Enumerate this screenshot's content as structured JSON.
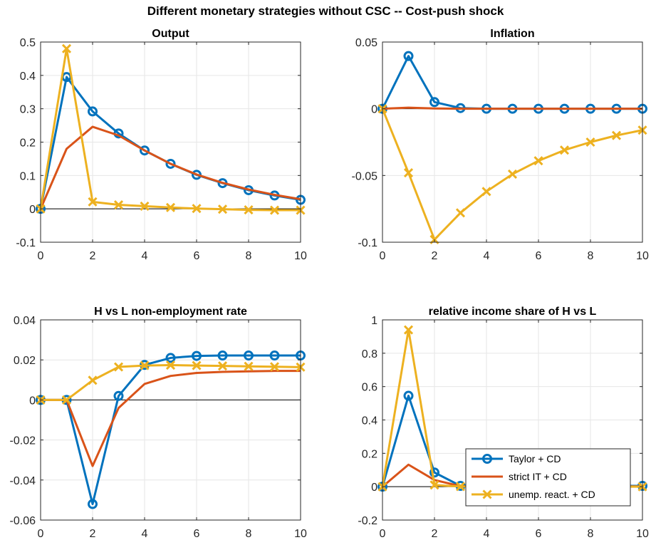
{
  "figure_title": "Different monetary strategies without CSC -- Cost-push shock",
  "colors": {
    "taylor": "#0072BD",
    "strict_it": "#D95319",
    "unemp": "#EDB120",
    "grid": "#e6e6e6",
    "axis": "#262626"
  },
  "legend": {
    "entries": [
      "Taylor + CD",
      "strict IT + CD",
      "unemp. react. + CD"
    ],
    "placement": "lower-right of relative income share panel"
  },
  "chart_data": [
    {
      "type": "line",
      "title": "Output",
      "x": [
        0,
        1,
        2,
        3,
        4,
        5,
        6,
        7,
        8,
        9,
        10
      ],
      "xlim": [
        0,
        10
      ],
      "ylim": [
        -0.1,
        0.5
      ],
      "xticks": [
        "0",
        "2",
        "4",
        "6",
        "8",
        "10"
      ],
      "yticks": [
        "-0.1",
        "0",
        "0.1",
        "0.2",
        "0.3",
        "0.4",
        "0.5"
      ],
      "grid": true,
      "zero_line": true,
      "series": [
        {
          "name": "Taylor + CD",
          "values": [
            0,
            0.395,
            0.292,
            0.226,
            0.175,
            0.135,
            0.102,
            0.077,
            0.056,
            0.04,
            0.027
          ]
        },
        {
          "name": "strict IT + CD",
          "values": [
            0,
            0.18,
            0.246,
            0.22,
            0.175,
            0.135,
            0.103,
            0.078,
            0.058,
            0.042,
            0.029
          ]
        },
        {
          "name": "unemp. react. + CD",
          "values": [
            0,
            0.48,
            0.021,
            0.012,
            0.008,
            0.004,
            0.001,
            -0.001,
            -0.003,
            -0.004,
            -0.004
          ]
        }
      ]
    },
    {
      "type": "line",
      "title": "Inflation",
      "x": [
        0,
        1,
        2,
        3,
        4,
        5,
        6,
        7,
        8,
        9,
        10
      ],
      "xlim": [
        0,
        10
      ],
      "ylim": [
        -0.1,
        0.05
      ],
      "xticks": [
        "0",
        "2",
        "4",
        "6",
        "8",
        "10"
      ],
      "yticks": [
        "-0.1",
        "-0.05",
        "0",
        "0.05"
      ],
      "grid": true,
      "zero_line": true,
      "series": [
        {
          "name": "Taylor + CD",
          "values": [
            0,
            0.0395,
            0.005,
            0.0005,
            0,
            0,
            0,
            0,
            0,
            0,
            0
          ]
        },
        {
          "name": "strict IT + CD",
          "values": [
            0,
            0.0008,
            0.0002,
            0,
            0,
            0,
            0,
            0,
            0,
            0,
            0
          ]
        },
        {
          "name": "unemp. react. + CD",
          "values": [
            0,
            -0.048,
            -0.098,
            -0.078,
            -0.062,
            -0.049,
            -0.039,
            -0.031,
            -0.025,
            -0.02,
            -0.016
          ]
        }
      ]
    },
    {
      "type": "line",
      "title": "H vs L non-employment rate",
      "x": [
        0,
        1,
        2,
        3,
        4,
        5,
        6,
        7,
        8,
        9,
        10
      ],
      "xlim": [
        0,
        10
      ],
      "ylim": [
        -0.06,
        0.04
      ],
      "xticks": [
        "0",
        "2",
        "4",
        "6",
        "8",
        "10"
      ],
      "yticks": [
        "-0.06",
        "-0.04",
        "-0.02",
        "0",
        "0.02",
        "0.04"
      ],
      "grid": true,
      "zero_line": true,
      "series": [
        {
          "name": "Taylor + CD",
          "values": [
            0,
            0,
            -0.052,
            0.002,
            0.0175,
            0.021,
            0.022,
            0.0222,
            0.0222,
            0.0222,
            0.0222
          ]
        },
        {
          "name": "strict IT + CD",
          "values": [
            0,
            0,
            -0.033,
            -0.004,
            0.008,
            0.012,
            0.0135,
            0.014,
            0.0143,
            0.0145,
            0.0145
          ]
        },
        {
          "name": "unemp. react. + CD",
          "values": [
            0,
            0,
            0.0098,
            0.0165,
            0.0172,
            0.0174,
            0.0172,
            0.017,
            0.0168,
            0.0166,
            0.0164
          ]
        }
      ]
    },
    {
      "type": "line",
      "title": "relative income share of H vs L",
      "x": [
        0,
        1,
        2,
        3,
        4,
        5,
        6,
        7,
        8,
        9,
        10
      ],
      "xlim": [
        0,
        10
      ],
      "ylim": [
        -0.2,
        1
      ],
      "xticks": [
        "0",
        "2",
        "4",
        "6",
        "8",
        "10"
      ],
      "yticks": [
        "-0.2",
        "0",
        "0.2",
        "0.4",
        "0.6",
        "0.8",
        "1"
      ],
      "grid": true,
      "zero_line": true,
      "series": [
        {
          "name": "Taylor + CD",
          "values": [
            0,
            0.545,
            0.085,
            0.005,
            0.003,
            0.003,
            0.004,
            0.004,
            0.005,
            0.005,
            0.005
          ]
        },
        {
          "name": "strict IT + CD",
          "values": [
            0,
            0.132,
            0.04,
            0.003,
            0.002,
            0.002,
            0.002,
            0.002,
            0.002,
            0.002,
            0.002
          ]
        },
        {
          "name": "unemp. react. + CD",
          "values": [
            0,
            0.94,
            0.01,
            0.001,
            0,
            0,
            0,
            0,
            0,
            0,
            0
          ]
        }
      ]
    }
  ]
}
